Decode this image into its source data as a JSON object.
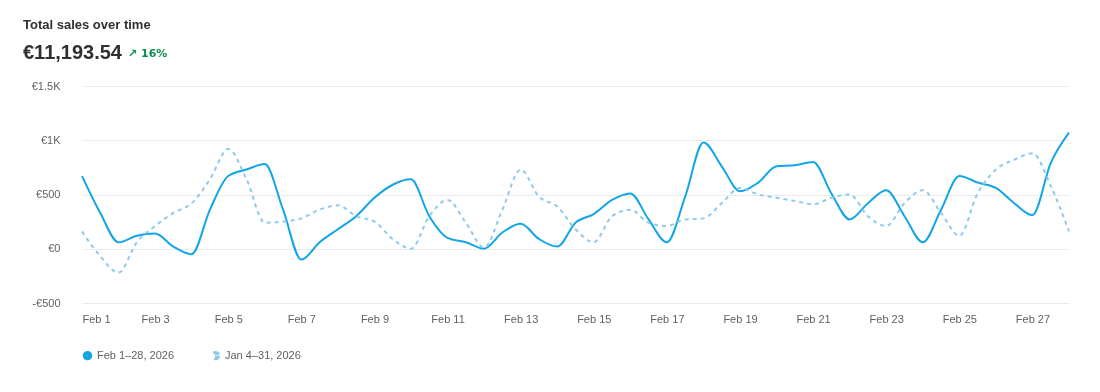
{
  "chart_data": {
    "type": "line",
    "title": "Total sales over time",
    "subtitle": "€11,193.54",
    "annotations": [
      "↗ 16%"
    ],
    "x": [
      "2026-02-01T00:00",
      "2026-02-01T12:00",
      "2026-02-02T00:00",
      "2026-02-02T12:00",
      "2026-02-03T00:00",
      "2026-02-03T12:00",
      "2026-02-04T00:00",
      "2026-02-04T12:00",
      "2026-02-05T00:00",
      "2026-02-05T12:00",
      "2026-02-06T00:00",
      "2026-02-06T12:00",
      "2026-02-07T00:00",
      "2026-02-07T12:00",
      "2026-02-08T00:00",
      "2026-02-08T12:00",
      "2026-02-09T00:00",
      "2026-02-09T12:00",
      "2026-02-10T00:00",
      "2026-02-10T12:00",
      "2026-02-11T00:00",
      "2026-02-11T12:00",
      "2026-02-12T00:00",
      "2026-02-12T12:00",
      "2026-02-13T00:00",
      "2026-02-13T12:00",
      "2026-02-14T00:00",
      "2026-02-14T12:00",
      "2026-02-15T00:00",
      "2026-02-15T12:00",
      "2026-02-16T00:00",
      "2026-02-16T12:00",
      "2026-02-17T00:00",
      "2026-02-17T12:00",
      "2026-02-18T00:00",
      "2026-02-18T12:00",
      "2026-02-19T00:00",
      "2026-02-19T12:00",
      "2026-02-20T00:00",
      "2026-02-20T12:00",
      "2026-02-21T00:00",
      "2026-02-21T12:00",
      "2026-02-22T00:00",
      "2026-02-22T12:00",
      "2026-02-23T00:00",
      "2026-02-23T12:00",
      "2026-02-24T00:00",
      "2026-02-24T12:00",
      "2026-02-25T00:00",
      "2026-02-25T12:00",
      "2026-02-26T00:00",
      "2026-02-26T12:00",
      "2026-02-27T00:00",
      "2026-02-27T12:00",
      "2026-02-28T00:00"
    ],
    "series": [
      {
        "name": "Feb 1–28, 2026",
        "color": "#13a5e8",
        "line_style": "solid",
        "values": [
          670,
          330,
          60,
          120,
          140,
          20,
          -50,
          360,
          670,
          730,
          780,
          360,
          -100,
          60,
          180,
          300,
          470,
          590,
          640,
          300,
          100,
          60,
          0,
          150,
          230,
          90,
          20,
          240,
          320,
          450,
          510,
          270,
          60,
          480,
          980,
          760,
          530,
          610,
          760,
          770,
          800,
          510,
          270,
          420,
          540,
          300,
          60,
          360,
          670,
          610,
          560,
          420,
          310,
          790,
          1070
        ]
      },
      {
        "name": "Jan 4–31, 2026",
        "color": "#8ccbec",
        "line_style": "dashed",
        "values": [
          160,
          -70,
          -220,
          60,
          210,
          330,
          420,
          640,
          920,
          640,
          240,
          250,
          280,
          360,
          400,
          300,
          250,
          90,
          0,
          300,
          450,
          240,
          10,
          360,
          730,
          480,
          390,
          180,
          60,
          300,
          360,
          240,
          210,
          270,
          280,
          420,
          560,
          500,
          470,
          440,
          410,
          470,
          500,
          300,
          210,
          420,
          540,
          330,
          120,
          510,
          730,
          820,
          880,
          580,
          160
        ]
      }
    ],
    "xlim": [
      "2026-02-01",
      "2026-02-28"
    ],
    "xticks": [
      {
        "value": "2026-02-01",
        "label": "Feb 1"
      },
      {
        "value": "2026-02-03",
        "label": "Feb 3"
      },
      {
        "value": "2026-02-05",
        "label": "Feb 5"
      },
      {
        "value": "2026-02-07",
        "label": "Feb 7"
      },
      {
        "value": "2026-02-09",
        "label": "Feb 9"
      },
      {
        "value": "2026-02-11",
        "label": "Feb 11"
      },
      {
        "value": "2026-02-13",
        "label": "Feb 13"
      },
      {
        "value": "2026-02-15",
        "label": "Feb 15"
      },
      {
        "value": "2026-02-17",
        "label": "Feb 17"
      },
      {
        "value": "2026-02-19",
        "label": "Feb 19"
      },
      {
        "value": "2026-02-21",
        "label": "Feb 21"
      },
      {
        "value": "2026-02-23",
        "label": "Feb 23"
      },
      {
        "value": "2026-02-25",
        "label": "Feb 25"
      },
      {
        "value": "2026-02-27",
        "label": "Feb 27"
      }
    ],
    "ylim": [
      -500,
      1500
    ],
    "yticks": [
      {
        "value": -500,
        "label": "-€500"
      },
      {
        "value": 0,
        "label": "€0"
      },
      {
        "value": 500,
        "label": "€500"
      },
      {
        "value": 1000,
        "label": "€1K"
      },
      {
        "value": 1500,
        "label": "€1.5K"
      }
    ],
    "grid": "y",
    "legend": "bottom",
    "marker": "none"
  }
}
